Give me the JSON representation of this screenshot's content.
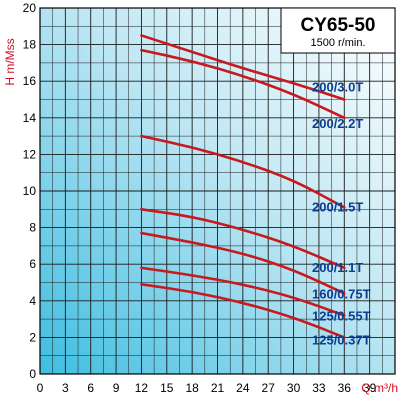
{
  "chart_data": {
    "type": "line",
    "title": "CY65-50",
    "subtitle": "1500 r/min.",
    "xlabel": "Q m³/h",
    "ylabel": "H m/Mss",
    "xlim": [
      0,
      42
    ],
    "ylim": [
      0,
      20
    ],
    "x_ticks": [
      "0",
      "3",
      "6",
      "9",
      "12",
      "15",
      "18",
      "21",
      "24",
      "27",
      "30",
      "33",
      "36",
      "39"
    ],
    "y_ticks": [
      "0",
      "2",
      "4",
      "6",
      "8",
      "10",
      "12",
      "14",
      "16",
      "18",
      "20"
    ],
    "grid": true,
    "series": [
      {
        "name": "200/3.0T",
        "x": [
          12,
          18,
          24,
          30,
          36
        ],
        "y": [
          18.5,
          17.6,
          16.7,
          15.9,
          15.0
        ]
      },
      {
        "name": "200/2.2T",
        "x": [
          12,
          18,
          24,
          30,
          36
        ],
        "y": [
          17.7,
          17.1,
          16.3,
          15.3,
          14.0
        ]
      },
      {
        "name": "200/1.5T",
        "x": [
          12,
          18,
          24,
          30,
          36
        ],
        "y": [
          13.0,
          12.4,
          11.6,
          10.6,
          9.1
        ]
      },
      {
        "name": "200/1.1T",
        "x": [
          12,
          18,
          24,
          30,
          36
        ],
        "y": [
          9.0,
          8.6,
          7.9,
          7.0,
          5.8
        ]
      },
      {
        "name": "160/0.75T",
        "x": [
          12,
          18,
          24,
          30,
          36
        ],
        "y": [
          7.7,
          7.2,
          6.6,
          5.7,
          4.4
        ]
      },
      {
        "name": "125/0.55T",
        "x": [
          12,
          18,
          24,
          30,
          36
        ],
        "y": [
          5.8,
          5.4,
          4.9,
          4.2,
          3.2
        ]
      },
      {
        "name": "125/0.37T",
        "x": [
          12,
          18,
          24,
          30,
          36
        ],
        "y": [
          4.9,
          4.5,
          3.9,
          3.1,
          2.0
        ]
      }
    ],
    "colors": {
      "curve": "#c8191e",
      "label": "#0b3d91",
      "grid": "#1a1a1a",
      "bg_from": "#3dbde0",
      "bg_to": "#ffffff"
    }
  }
}
